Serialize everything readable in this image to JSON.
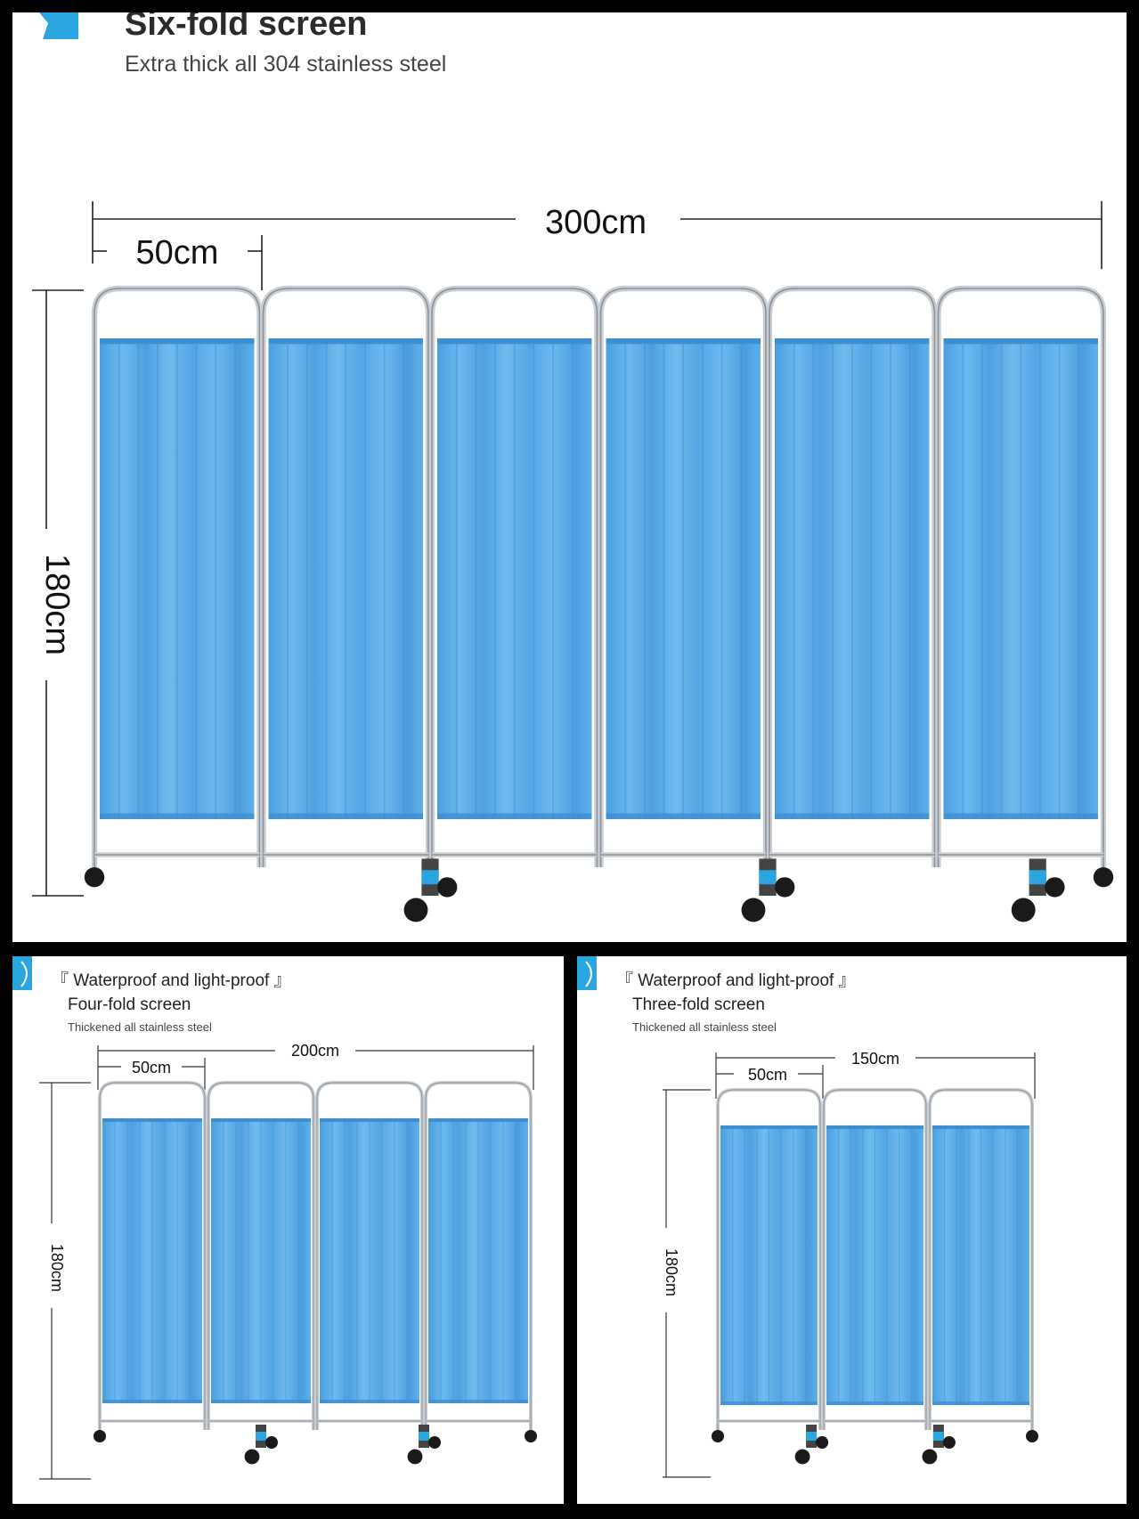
{
  "top": {
    "title": "Six-fold screen",
    "subtitle": "Extra thick all 304 stainless steel",
    "dim_width": "300cm",
    "dim_panel": "50cm",
    "dim_height": "180cm"
  },
  "bottom_left": {
    "tag": "『 Waterproof and light-proof 』",
    "title": "Four-fold screen",
    "subtitle": "Thickened all stainless steel",
    "dim_width": "200cm",
    "dim_panel": "50cm",
    "dim_height": "180cm"
  },
  "bottom_right": {
    "tag": "『 Waterproof and light-proof 』",
    "title": "Three-fold screen",
    "subtitle": "Thickened all stainless steel",
    "dim_width": "150cm",
    "dim_panel": "50cm",
    "dim_height": "180cm"
  },
  "colors": {
    "curtain": "#5aaee8",
    "curtain_dark": "#3d8fd0",
    "frame": "#c9ced3",
    "accent": "#2aa5e0"
  }
}
